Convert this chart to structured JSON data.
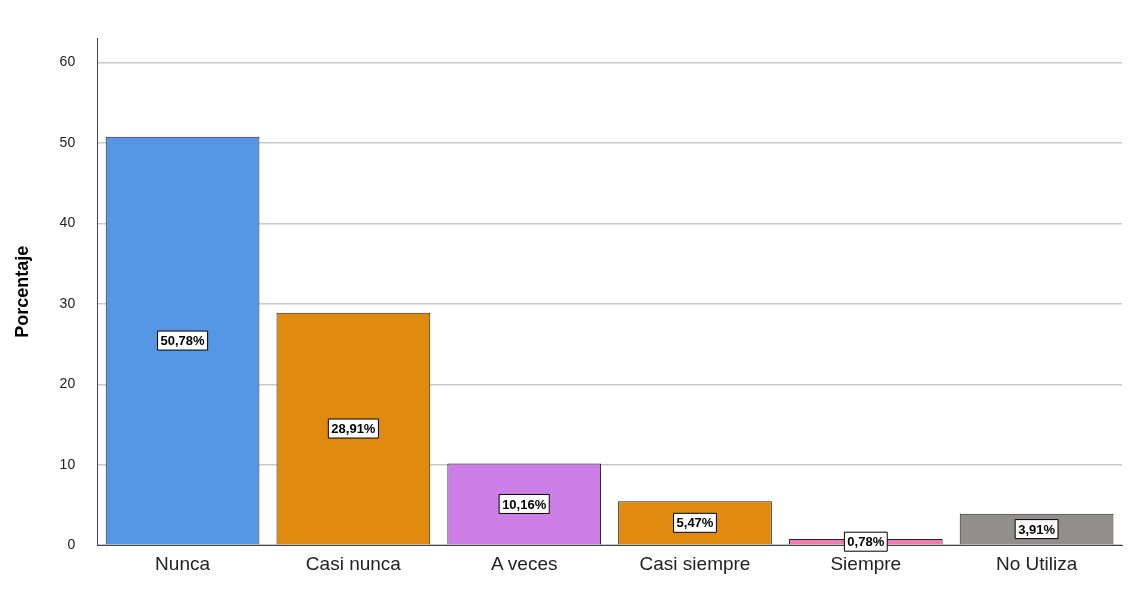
{
  "chart_data": {
    "type": "bar",
    "ylabel": "Porcentaje",
    "categories": [
      "Nunca",
      "Casi nunca",
      "A veces",
      "Casi siempre",
      "Siempre",
      "No Utiliza"
    ],
    "values": [
      50.78,
      28.91,
      10.16,
      5.47,
      0.78,
      3.91
    ],
    "colors": [
      "#5596e6",
      "#e08b0f",
      "#cc7ee6",
      "#e08b0f",
      "#f17cb0",
      "#928e8e"
    ],
    "value_labels": [
      "50,78%",
      "28,91%",
      "10,16%",
      "5,47%",
      "0,78%",
      "3,91%"
    ],
    "ylim": [
      0,
      63
    ],
    "yticks": [
      0,
      10,
      20,
      30,
      40,
      50,
      60
    ],
    "grid": "y",
    "legend": false
  }
}
